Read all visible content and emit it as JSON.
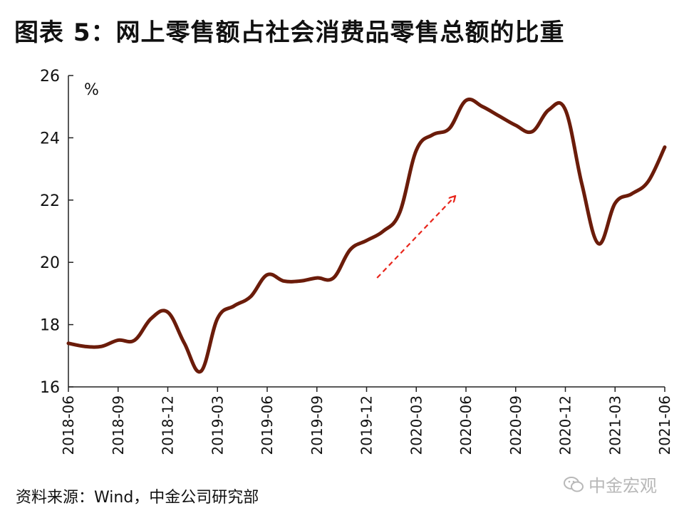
{
  "header": {
    "title": "图表 5：网上零售额占社会消费品零售总额的比重"
  },
  "footer": {
    "source": "资料来源：Wind，中金公司研究部"
  },
  "watermark": {
    "text": "中金宏观",
    "icon": "wechat-icon"
  },
  "colors": {
    "line": "#6b1c0a",
    "arrow": "#e8261c",
    "axis": "#222222"
  },
  "chart_data": {
    "type": "line",
    "title": "图表 5：网上零售额占社会消费品零售总额的比重",
    "ylabel": "%",
    "ylim": [
      16,
      26
    ],
    "yticks": [
      "16",
      "18",
      "20",
      "22",
      "24",
      "26"
    ],
    "xlim": [
      "2018-06",
      "2021-06"
    ],
    "xticks": [
      "2018-06",
      "2018-09",
      "2018-12",
      "2019-03",
      "2019-06",
      "2019-09",
      "2019-12",
      "2020-03",
      "2020-06",
      "2020-09",
      "2020-12",
      "2021-03",
      "2021-06"
    ],
    "grid": false,
    "series": [
      {
        "points": [
          [
            "2018-06",
            17.4
          ],
          [
            "2018-07",
            17.3
          ],
          [
            "2018-08",
            17.3
          ],
          [
            "2018-09",
            17.5
          ],
          [
            "2018-10",
            17.5
          ],
          [
            "2018-11",
            18.2
          ],
          [
            "2018-12",
            18.4
          ],
          [
            "2019-01",
            17.4
          ],
          [
            "2019-02",
            16.5
          ],
          [
            "2019-03",
            18.2
          ],
          [
            "2019-04",
            18.6
          ],
          [
            "2019-05",
            18.9
          ],
          [
            "2019-06",
            19.6
          ],
          [
            "2019-07",
            19.4
          ],
          [
            "2019-08",
            19.4
          ],
          [
            "2019-09",
            19.5
          ],
          [
            "2019-10",
            19.5
          ],
          [
            "2019-11",
            20.4
          ],
          [
            "2019-12",
            20.7
          ],
          [
            "2020-01",
            21.0
          ],
          [
            "2020-02",
            21.6
          ],
          [
            "2020-03",
            23.6
          ],
          [
            "2020-04",
            24.1
          ],
          [
            "2020-05",
            24.3
          ],
          [
            "2020-06",
            25.2
          ],
          [
            "2020-07",
            25.0
          ],
          [
            "2020-08",
            24.7
          ],
          [
            "2020-09",
            24.4
          ],
          [
            "2020-10",
            24.2
          ],
          [
            "2020-11",
            24.9
          ],
          [
            "2020-12",
            24.9
          ],
          [
            "2021-01",
            22.5
          ],
          [
            "2021-02",
            20.6
          ],
          [
            "2021-03",
            21.9
          ],
          [
            "2021-04",
            22.2
          ],
          [
            "2021-05",
            22.6
          ],
          [
            "2021-06",
            23.7
          ]
        ]
      }
    ],
    "annotations": [
      {
        "type": "dashed-arrow",
        "from": [
          "2019-12-20",
          19.5
        ],
        "to": [
          "2020-05-10",
          22.1
        ]
      }
    ]
  }
}
